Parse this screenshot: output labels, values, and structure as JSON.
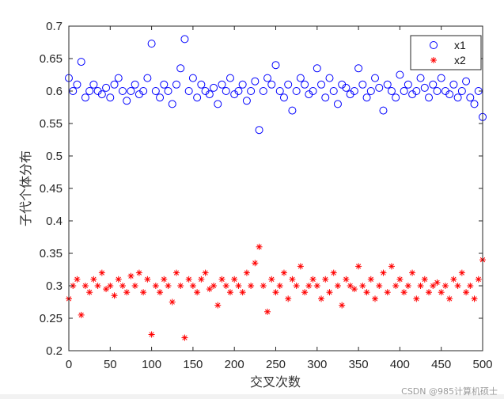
{
  "chart_data": {
    "type": "scatter",
    "xlabel": "交叉次数",
    "ylabel": "子代个体分布",
    "xlim": [
      0,
      500
    ],
    "ylim": [
      0.2,
      0.7
    ],
    "xticks": [
      0,
      50,
      100,
      150,
      200,
      250,
      300,
      350,
      400,
      450,
      500
    ],
    "yticks": [
      0.2,
      0.25,
      0.3,
      0.35,
      0.4,
      0.45,
      0.5,
      0.55,
      0.6,
      0.65,
      0.7
    ],
    "ytick_labels": [
      "0.2",
      "0.25",
      "0.3",
      "0.35",
      "0.4",
      "0.45",
      "0.5",
      "0.55",
      "0.6",
      "0.65",
      "0.7"
    ],
    "grid": false,
    "legend_placement": "top-right",
    "x": [
      0,
      5,
      10,
      15,
      20,
      25,
      30,
      35,
      40,
      45,
      50,
      55,
      60,
      65,
      70,
      75,
      80,
      85,
      90,
      95,
      100,
      105,
      110,
      115,
      120,
      125,
      130,
      135,
      140,
      145,
      150,
      155,
      160,
      165,
      170,
      175,
      180,
      185,
      190,
      195,
      200,
      205,
      210,
      215,
      220,
      225,
      230,
      235,
      240,
      245,
      250,
      255,
      260,
      265,
      270,
      275,
      280,
      285,
      290,
      295,
      300,
      305,
      310,
      315,
      320,
      325,
      330,
      335,
      340,
      345,
      350,
      355,
      360,
      365,
      370,
      375,
      380,
      385,
      390,
      395,
      400,
      405,
      410,
      415,
      420,
      425,
      430,
      435,
      440,
      445,
      450,
      455,
      460,
      465,
      470,
      475,
      480,
      485,
      490,
      495,
      500
    ],
    "series": [
      {
        "name": "x1",
        "marker": "circle",
        "color": "#0000ff",
        "values": [
          0.62,
          0.6,
          0.61,
          0.645,
          0.59,
          0.6,
          0.61,
          0.6,
          0.595,
          0.605,
          0.59,
          0.61,
          0.62,
          0.6,
          0.585,
          0.6,
          0.61,
          0.595,
          0.6,
          0.62,
          0.673,
          0.6,
          0.59,
          0.61,
          0.6,
          0.58,
          0.61,
          0.635,
          0.68,
          0.6,
          0.62,
          0.59,
          0.61,
          0.6,
          0.595,
          0.605,
          0.58,
          0.61,
          0.6,
          0.62,
          0.595,
          0.6,
          0.61,
          0.585,
          0.6,
          0.615,
          0.54,
          0.6,
          0.62,
          0.61,
          0.64,
          0.6,
          0.59,
          0.61,
          0.57,
          0.6,
          0.62,
          0.61,
          0.595,
          0.6,
          0.635,
          0.61,
          0.59,
          0.62,
          0.6,
          0.58,
          0.61,
          0.605,
          0.595,
          0.6,
          0.635,
          0.61,
          0.59,
          0.6,
          0.62,
          0.605,
          0.57,
          0.61,
          0.6,
          0.59,
          0.625,
          0.6,
          0.61,
          0.595,
          0.6,
          0.62,
          0.605,
          0.59,
          0.61,
          0.6,
          0.62,
          0.6,
          0.595,
          0.61,
          0.59,
          0.6,
          0.615,
          0.59,
          0.58,
          0.6,
          0.56
        ]
      },
      {
        "name": "x2",
        "marker": "asterisk",
        "color": "#ff0000",
        "values": [
          0.28,
          0.3,
          0.31,
          0.255,
          0.3,
          0.29,
          0.31,
          0.3,
          0.32,
          0.295,
          0.3,
          0.285,
          0.31,
          0.3,
          0.29,
          0.315,
          0.3,
          0.32,
          0.29,
          0.31,
          0.225,
          0.3,
          0.29,
          0.31,
          0.3,
          0.275,
          0.32,
          0.3,
          0.22,
          0.31,
          0.3,
          0.29,
          0.31,
          0.32,
          0.295,
          0.3,
          0.27,
          0.31,
          0.3,
          0.29,
          0.31,
          0.3,
          0.29,
          0.32,
          0.3,
          0.335,
          0.36,
          0.3,
          0.26,
          0.31,
          0.29,
          0.3,
          0.32,
          0.28,
          0.31,
          0.3,
          0.33,
          0.29,
          0.3,
          0.31,
          0.3,
          0.28,
          0.31,
          0.29,
          0.32,
          0.3,
          0.27,
          0.31,
          0.3,
          0.295,
          0.33,
          0.3,
          0.29,
          0.31,
          0.28,
          0.3,
          0.32,
          0.29,
          0.33,
          0.3,
          0.31,
          0.29,
          0.3,
          0.32,
          0.28,
          0.3,
          0.31,
          0.29,
          0.3,
          0.305,
          0.29,
          0.3,
          0.28,
          0.31,
          0.3,
          0.32,
          0.29,
          0.3,
          0.28,
          0.31,
          0.34
        ]
      }
    ]
  },
  "watermark": "CSDN @985计算机硕士"
}
